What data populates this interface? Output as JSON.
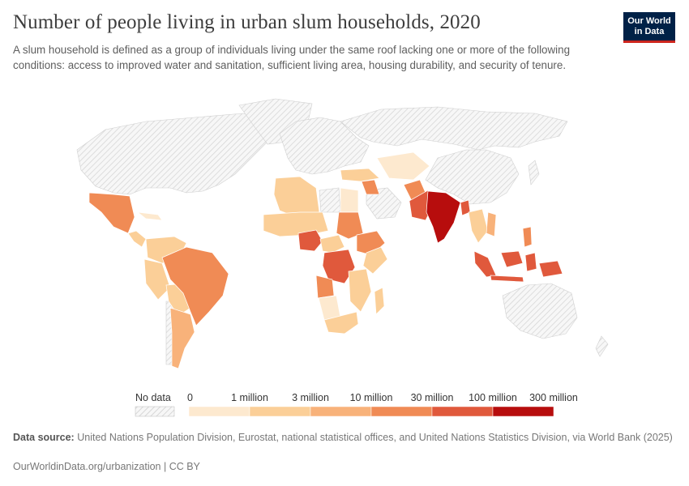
{
  "header": {
    "title": "Number of people living in urban slum households, 2020",
    "subtitle": "A slum household is defined as a group of individuals living under the same roof lacking one or more of the following conditions: access to improved water and sanitation, sufficient living area, housing durability, and security of tenure."
  },
  "logo": {
    "line1": "Our World",
    "line2": "in Data"
  },
  "legend": {
    "no_data_label": "No data",
    "thresholds": [
      "0",
      "1 million",
      "3 million",
      "10 million",
      "30 million",
      "100 million",
      "300 million"
    ],
    "colors": [
      "#fde9cf",
      "#fbcf98",
      "#f8b27a",
      "#f08b55",
      "#e0593c",
      "#b70d0d"
    ],
    "no_data_color": "#e8e8e8"
  },
  "map_data": {
    "type": "choropleth",
    "regions": [
      {
        "name": "India",
        "bin": 6
      },
      {
        "name": "Pakistan",
        "bin": 5
      },
      {
        "name": "Bangladesh",
        "bin": 5
      },
      {
        "name": "Indonesia",
        "bin": 5
      },
      {
        "name": "Nigeria",
        "bin": 5
      },
      {
        "name": "Democratic Republic of Congo",
        "bin": 5
      },
      {
        "name": "Brazil",
        "bin": 4
      },
      {
        "name": "Mexico",
        "bin": 4
      },
      {
        "name": "Ethiopia",
        "bin": 4
      },
      {
        "name": "Sudan",
        "bin": 4
      },
      {
        "name": "Afghanistan",
        "bin": 4
      },
      {
        "name": "Philippines",
        "bin": 4
      },
      {
        "name": "Iraq",
        "bin": 4
      },
      {
        "name": "Angola",
        "bin": 4
      }
    ]
  },
  "footer": {
    "source_label": "Data source:",
    "source_text": "United Nations Population Division, Eurostat, national statistical offices, and United Nations Statistics Division, via World Bank (2025)",
    "link_text": "OurWorldinData.org/urbanization | CC BY"
  }
}
